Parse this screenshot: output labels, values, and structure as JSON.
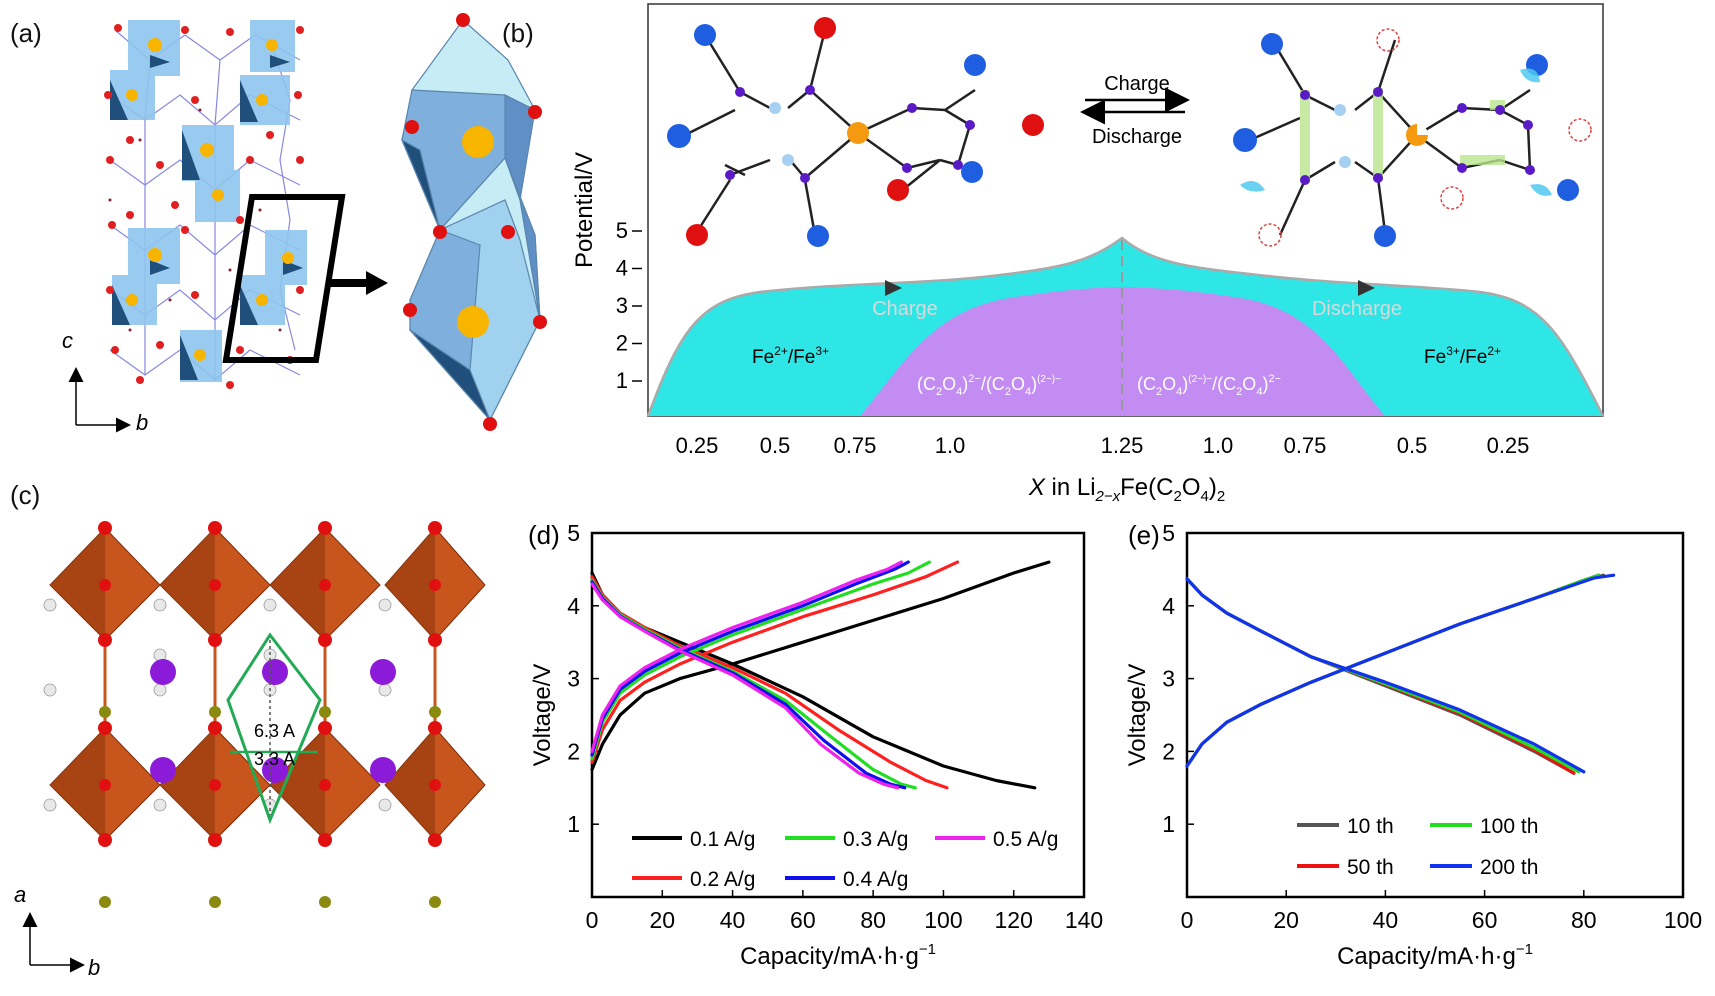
{
  "panels": {
    "a": {
      "label": "(a)",
      "axis_c": "c",
      "axis_b": "b"
    },
    "b": {
      "label": "(b)",
      "ylabel": "Potential/V",
      "yticks": [
        "1",
        "2",
        "3",
        "4",
        "5"
      ],
      "xticks": [
        "0.25",
        "0.5",
        "0.75",
        "1.0",
        "1.25",
        "1.0",
        "0.75",
        "0.5",
        "0.25"
      ],
      "xlabel_x": "X",
      "xlabel_in": " in Li",
      "xlabel_sub1": "2−x",
      "xlabel_fe": "Fe(C",
      "xlabel_sub2": "2",
      "xlabel_o": "O",
      "xlabel_sub3": "4",
      "xlabel_close": ")",
      "xlabel_sub4": "2",
      "charge_arrow_label": "Charge",
      "discharge_arrow_label": "Discharge",
      "region_charge": "Charge",
      "region_discharge": "Discharge",
      "fe_left": "Fe2+/Fe3+",
      "fe_right": "Fe3+/Fe2+",
      "ox_left": "(C2O4)2−/(C2O4)(2−)−",
      "ox_right": "(C2O4)(2−)−/(C2O4)2−",
      "colors": {
        "fe_region": "#2ee6e6",
        "ox_region": "#c38cf2"
      }
    },
    "c": {
      "label": "(c)",
      "dist1": "6.3 A",
      "dist2": "3.3 A",
      "axis_a": "a",
      "axis_b": "b"
    }
  },
  "chart_data": [
    {
      "panel": "(d)",
      "type": "line",
      "xlabel": "Capacity/mA·h·g−1",
      "ylabel": "Voltage/V",
      "xlim": [
        0,
        140
      ],
      "ylim": [
        0,
        5
      ],
      "xticks": [
        0,
        20,
        40,
        60,
        80,
        100,
        120,
        140
      ],
      "yticks": [
        1,
        2,
        3,
        4,
        5
      ],
      "legend_position": "bottom",
      "series": [
        {
          "name": "0.1 A/g",
          "color": "#000000",
          "charge": [
            [
              0,
              1.75
            ],
            [
              3,
              2.1
            ],
            [
              8,
              2.5
            ],
            [
              15,
              2.8
            ],
            [
              25,
              3.0
            ],
            [
              40,
              3.2
            ],
            [
              60,
              3.5
            ],
            [
              80,
              3.8
            ],
            [
              100,
              4.1
            ],
            [
              120,
              4.45
            ],
            [
              130,
              4.6
            ]
          ],
          "discharge": [
            [
              0,
              4.45
            ],
            [
              3,
              4.15
            ],
            [
              8,
              3.9
            ],
            [
              15,
              3.7
            ],
            [
              25,
              3.5
            ],
            [
              40,
              3.2
            ],
            [
              60,
              2.75
            ],
            [
              80,
              2.2
            ],
            [
              100,
              1.8
            ],
            [
              115,
              1.6
            ],
            [
              126,
              1.5
            ]
          ]
        },
        {
          "name": "0.2 A/g",
          "color": "#ff2020",
          "charge": [
            [
              0,
              1.85
            ],
            [
              3,
              2.3
            ],
            [
              8,
              2.7
            ],
            [
              15,
              2.95
            ],
            [
              25,
              3.2
            ],
            [
              40,
              3.5
            ],
            [
              60,
              3.85
            ],
            [
              80,
              4.15
            ],
            [
              95,
              4.4
            ],
            [
              104,
              4.6
            ]
          ],
          "discharge": [
            [
              0,
              4.4
            ],
            [
              3,
              4.15
            ],
            [
              8,
              3.9
            ],
            [
              15,
              3.7
            ],
            [
              25,
              3.45
            ],
            [
              40,
              3.15
            ],
            [
              55,
              2.8
            ],
            [
              70,
              2.3
            ],
            [
              85,
              1.85
            ],
            [
              95,
              1.6
            ],
            [
              101,
              1.5
            ]
          ]
        },
        {
          "name": "0.3 A/g",
          "color": "#22dd22",
          "charge": [
            [
              0,
              1.9
            ],
            [
              3,
              2.4
            ],
            [
              8,
              2.8
            ],
            [
              15,
              3.05
            ],
            [
              25,
              3.3
            ],
            [
              40,
              3.6
            ],
            [
              60,
              3.95
            ],
            [
              80,
              4.3
            ],
            [
              90,
              4.45
            ],
            [
              96,
              4.6
            ]
          ],
          "discharge": [
            [
              0,
              4.35
            ],
            [
              3,
              4.12
            ],
            [
              8,
              3.88
            ],
            [
              15,
              3.68
            ],
            [
              25,
              3.42
            ],
            [
              40,
              3.1
            ],
            [
              55,
              2.7
            ],
            [
              68,
              2.2
            ],
            [
              80,
              1.75
            ],
            [
              88,
              1.55
            ],
            [
              92,
              1.5
            ]
          ]
        },
        {
          "name": "0.4 A/g",
          "color": "#1010ee",
          "charge": [
            [
              0,
              1.95
            ],
            [
              3,
              2.45
            ],
            [
              8,
              2.85
            ],
            [
              15,
              3.1
            ],
            [
              25,
              3.35
            ],
            [
              40,
              3.65
            ],
            [
              60,
              4.0
            ],
            [
              75,
              4.3
            ],
            [
              86,
              4.5
            ],
            [
              90,
              4.6
            ]
          ],
          "discharge": [
            [
              0,
              4.33
            ],
            [
              3,
              4.1
            ],
            [
              8,
              3.86
            ],
            [
              15,
              3.66
            ],
            [
              25,
              3.4
            ],
            [
              40,
              3.08
            ],
            [
              55,
              2.65
            ],
            [
              66,
              2.15
            ],
            [
              78,
              1.7
            ],
            [
              85,
              1.55
            ],
            [
              89,
              1.5
            ]
          ]
        },
        {
          "name": "0.5 A/g",
          "color": "#ee22ee",
          "charge": [
            [
              0,
              2.0
            ],
            [
              3,
              2.5
            ],
            [
              8,
              2.9
            ],
            [
              15,
              3.15
            ],
            [
              25,
              3.4
            ],
            [
              40,
              3.7
            ],
            [
              60,
              4.05
            ],
            [
              75,
              4.35
            ],
            [
              84,
              4.5
            ],
            [
              88,
              4.6
            ]
          ],
          "discharge": [
            [
              0,
              4.3
            ],
            [
              3,
              4.08
            ],
            [
              8,
              3.85
            ],
            [
              15,
              3.65
            ],
            [
              25,
              3.38
            ],
            [
              40,
              3.05
            ],
            [
              55,
              2.6
            ],
            [
              65,
              2.1
            ],
            [
              76,
              1.7
            ],
            [
              83,
              1.55
            ],
            [
              87,
              1.5
            ]
          ]
        }
      ]
    },
    {
      "panel": "(e)",
      "type": "line",
      "xlabel": "Capacity/mA·h·g−1",
      "ylabel": "Voltage/V",
      "xlim": [
        0,
        100
      ],
      "ylim": [
        0,
        5
      ],
      "xticks": [
        0,
        20,
        40,
        60,
        80,
        100
      ],
      "yticks": [
        1,
        2,
        3,
        4,
        5
      ],
      "legend_position": "bottom",
      "series": [
        {
          "name": "10 th",
          "color": "#555555",
          "charge": [
            [
              0,
              1.8
            ],
            [
              3,
              2.1
            ],
            [
              8,
              2.4
            ],
            [
              15,
              2.65
            ],
            [
              25,
              2.95
            ],
            [
              40,
              3.35
            ],
            [
              55,
              3.75
            ],
            [
              70,
              4.1
            ],
            [
              80,
              4.35
            ],
            [
              84,
              4.42
            ]
          ],
          "discharge": [
            [
              0,
              4.37
            ],
            [
              3,
              4.15
            ],
            [
              8,
              3.9
            ],
            [
              15,
              3.65
            ],
            [
              25,
              3.3
            ],
            [
              40,
              2.9
            ],
            [
              55,
              2.5
            ],
            [
              70,
              2.0
            ],
            [
              78,
              1.7
            ]
          ]
        },
        {
          "name": "50 th",
          "color": "#ee1111",
          "charge": [
            [
              0,
              1.8
            ],
            [
              3,
              2.1
            ],
            [
              8,
              2.4
            ],
            [
              15,
              2.65
            ],
            [
              25,
              2.95
            ],
            [
              40,
              3.35
            ],
            [
              55,
              3.75
            ],
            [
              70,
              4.1
            ],
            [
              80,
              4.35
            ],
            [
              83,
              4.42
            ]
          ],
          "discharge": [
            [
              0,
              4.37
            ],
            [
              3,
              4.15
            ],
            [
              8,
              3.9
            ],
            [
              15,
              3.65
            ],
            [
              25,
              3.3
            ],
            [
              40,
              2.92
            ],
            [
              55,
              2.52
            ],
            [
              70,
              2.02
            ],
            [
              78,
              1.7
            ]
          ]
        },
        {
          "name": "100 th",
          "color": "#22dd22",
          "charge": [
            [
              0,
              1.8
            ],
            [
              3,
              2.1
            ],
            [
              8,
              2.4
            ],
            [
              15,
              2.65
            ],
            [
              25,
              2.95
            ],
            [
              40,
              3.35
            ],
            [
              55,
              3.75
            ],
            [
              70,
              4.1
            ],
            [
              80,
              4.35
            ],
            [
              83,
              4.42
            ]
          ],
          "discharge": [
            [
              0,
              4.37
            ],
            [
              3,
              4.15
            ],
            [
              8,
              3.9
            ],
            [
              15,
              3.65
            ],
            [
              25,
              3.3
            ],
            [
              40,
              2.93
            ],
            [
              55,
              2.54
            ],
            [
              70,
              2.05
            ],
            [
              79,
              1.72
            ]
          ]
        },
        {
          "name": "200 th",
          "color": "#1133ee",
          "charge": [
            [
              0,
              1.8
            ],
            [
              3,
              2.1
            ],
            [
              8,
              2.4
            ],
            [
              15,
              2.65
            ],
            [
              25,
              2.95
            ],
            [
              40,
              3.35
            ],
            [
              55,
              3.75
            ],
            [
              70,
              4.1
            ],
            [
              82,
              4.38
            ],
            [
              86,
              4.42
            ]
          ],
          "discharge": [
            [
              0,
              4.37
            ],
            [
              3,
              4.15
            ],
            [
              8,
              3.9
            ],
            [
              15,
              3.65
            ],
            [
              25,
              3.3
            ],
            [
              40,
              2.95
            ],
            [
              55,
              2.57
            ],
            [
              70,
              2.1
            ],
            [
              80,
              1.72
            ]
          ]
        }
      ]
    }
  ]
}
